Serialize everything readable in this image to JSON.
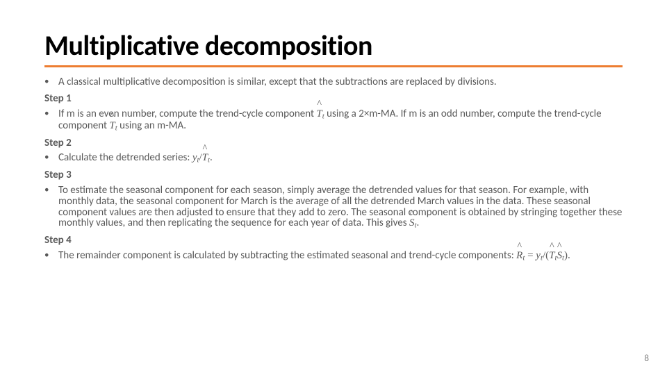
{
  "title": "Multiplicative decomposition",
  "intro": "A classical multiplicative decomposition is similar, except that the subtractions are replaced by divisions.",
  "step1Label": "Step 1",
  "step1_a": "If m is an even number, compute the trend-cycle component ",
  "step1_b": " using a 2×m-MA. If m is an odd number, compute the trend-cycle component ",
  "step1_c": " using an m-MA.",
  "step2Label": "Step 2",
  "step2_a": "Calculate the detrended series: ",
  "step2_b": ".",
  "step3Label": "Step 3",
  "step3_a": "To estimate the seasonal component for each season, simply average the detrended values for that season. For example, with monthly data, the seasonal component for March is the average of all the detrended March values in the data. These seasonal component values are then adjusted to ensure that they add to zero. The seasonal component is obtained by stringing together these monthly values, and then replicating the sequence for each year of data. This gives ",
  "step3_b": ".",
  "step4Label": "Step 4",
  "step4_a": "The remainder component is calculated by subtracting the estimated seasonal and trend-cycle components: ",
  "step4_b": ".",
  "math": {
    "T": "T",
    "t": "t",
    "y": "y",
    "S": "S",
    "R": "R",
    "hat": "^",
    "eq": " = ",
    "div": "/",
    "lp": "(",
    "rp": ")"
  },
  "pageNumber": "8",
  "colors": {
    "titleUnderline": "#ed7d31",
    "bodyText": "#595959",
    "titleText": "#000000",
    "background": "#ffffff"
  }
}
